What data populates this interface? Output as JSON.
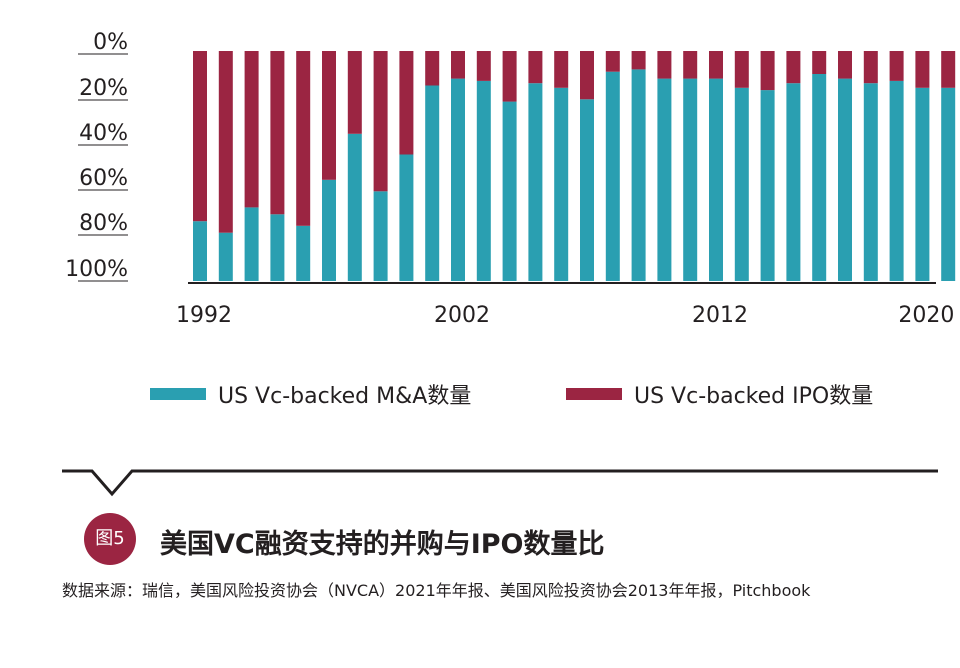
{
  "chart_data": {
    "type": "bar",
    "stacked": true,
    "x": [
      1992,
      1993,
      1994,
      1995,
      1996,
      1997,
      1998,
      1999,
      2000,
      2001,
      2002,
      2003,
      2004,
      2005,
      2006,
      2007,
      2008,
      2009,
      2010,
      2011,
      2012,
      2013,
      2014,
      2015,
      2016,
      2017,
      2018,
      2019,
      2020,
      2021
    ],
    "series": [
      {
        "name": "US Vc-backed M&A数量",
        "color": "#2a9fb1",
        "values": [
          26,
          21,
          32,
          29,
          24,
          44,
          64,
          39,
          55,
          85,
          88,
          87,
          78,
          86,
          84,
          79,
          91,
          92,
          88,
          88,
          88,
          84,
          83,
          86,
          90,
          88,
          86,
          87,
          84,
          84
        ]
      },
      {
        "name": "US Vc-backed IPO数量",
        "color": "#9b2542",
        "values": [
          74,
          79,
          68,
          71,
          76,
          56,
          36,
          61,
          45,
          15,
          12,
          13,
          22,
          14,
          16,
          21,
          9,
          8,
          12,
          12,
          12,
          16,
          17,
          14,
          10,
          12,
          14,
          13,
          16,
          16
        ]
      }
    ],
    "xticks": [
      "1992",
      "2002",
      "2012",
      "2020"
    ],
    "yticks": [
      "0%",
      "20%",
      "40%",
      "60%",
      "80%",
      "100%"
    ],
    "ylim": [
      0,
      100
    ],
    "legend_position": "bottom"
  },
  "caption": {
    "badge": "图5",
    "title": "美国VC融资支持的并购与IPO数量比",
    "source": "数据来源：瑞信，美国风险投资协会（NVCA）2021年年报、美国风险投资协会2013年年报，Pitchbook"
  }
}
